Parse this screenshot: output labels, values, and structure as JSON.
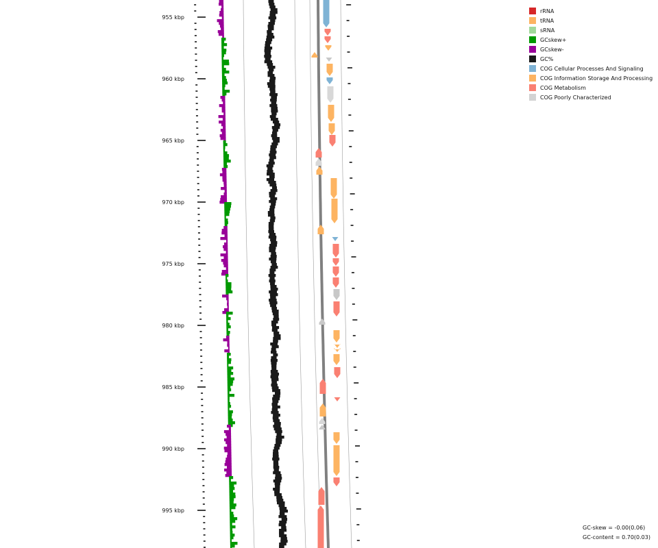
{
  "legend": [
    {
      "label": "rRNA",
      "color": "#d62728"
    },
    {
      "label": "tRNA",
      "color": "#fdb462"
    },
    {
      "label": "sRNA",
      "color": "#a1d99b"
    },
    {
      "label": "GCskew+",
      "color": "#009900"
    },
    {
      "label": "GCskew-",
      "color": "#990099"
    },
    {
      "label": "GC%",
      "color": "#1a1a1a"
    },
    {
      "label": "COG Cellular Processes And Signaling",
      "color": "#7fb3d5"
    },
    {
      "label": "COG Information Storage And Processing",
      "color": "#fdb462"
    },
    {
      "label": "COG Metabolism",
      "color": "#fa8072"
    },
    {
      "label": "COG Poorly Characterized",
      "color": "#d3d3d3"
    }
  ],
  "axis": {
    "ticks": [
      "955 kbp",
      "960 kbp",
      "965 kbp",
      "970 kbp",
      "975 kbp",
      "980 kbp",
      "985 kbp",
      "990 kbp",
      "995 kbp"
    ]
  },
  "stats": {
    "gc_skew": "GC-skew = -0.00(0.06)",
    "gc_content": "GC-content = 0.70(0.03)"
  }
}
